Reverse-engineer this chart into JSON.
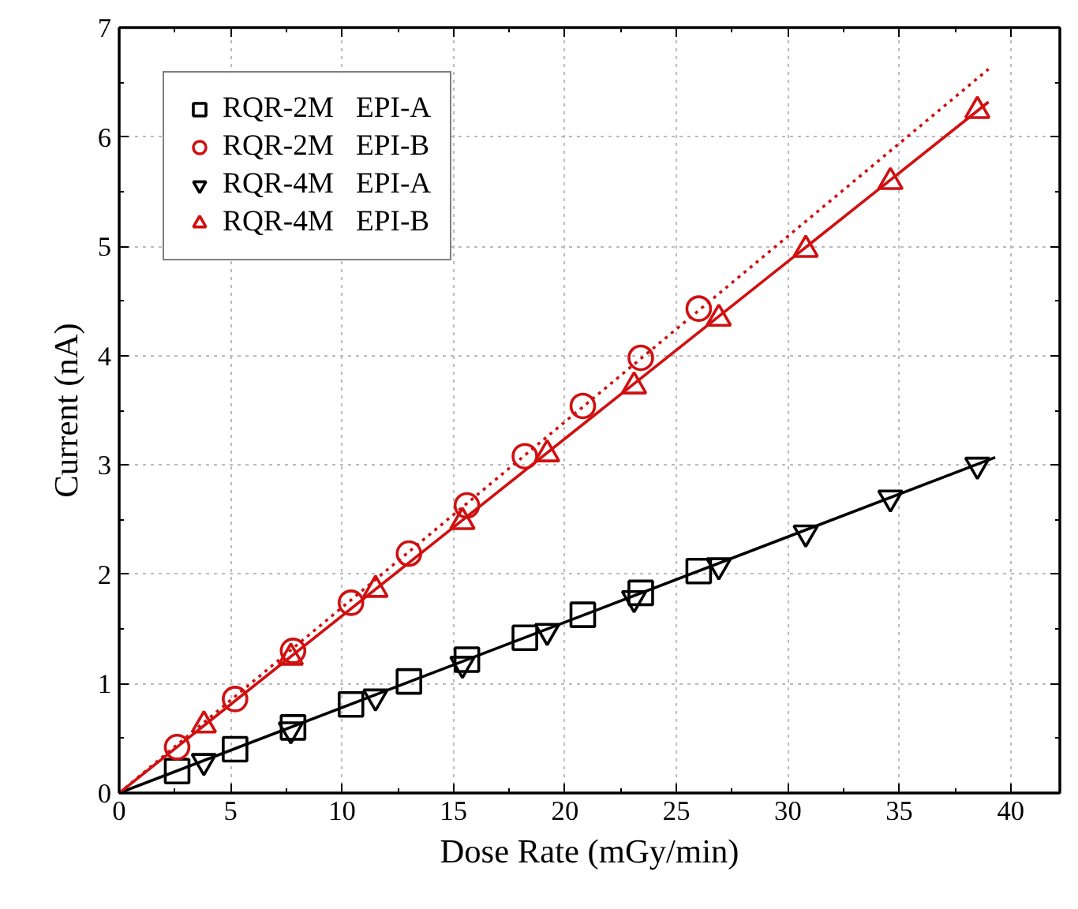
{
  "chart_data": {
    "type": "scatter",
    "xlabel": "Dose Rate (mGy/min)",
    "ylabel": "Current (nA)",
    "xlim": [
      0,
      42.2
    ],
    "ylim": [
      0,
      7
    ],
    "xticks": [
      0,
      5,
      10,
      15,
      20,
      25,
      30,
      35,
      40
    ],
    "yticks": [
      0,
      1,
      2,
      3,
      4,
      5,
      6,
      7
    ],
    "grid": true,
    "legend": "top left",
    "series": [
      {
        "name": "RQR-2M   EPI-A",
        "color": "#000000",
        "marker": "square",
        "x": [
          2.6,
          5.2,
          7.8,
          10.4,
          13.0,
          15.6,
          18.2,
          20.8,
          23.4,
          26.0
        ],
        "values": [
          0.2,
          0.4,
          0.6,
          0.81,
          1.02,
          1.22,
          1.42,
          1.63,
          1.83,
          2.03
        ]
      },
      {
        "name": "RQR-2M   EPI-B",
        "color": "#d01010",
        "marker": "circle",
        "x": [
          2.6,
          5.2,
          7.8,
          10.4,
          13.0,
          15.6,
          18.2,
          20.8,
          23.4,
          26.0
        ],
        "values": [
          0.42,
          0.86,
          1.3,
          1.74,
          2.19,
          2.63,
          3.08,
          3.54,
          3.98,
          4.43
        ]
      },
      {
        "name": "RQR-4M   EPI-A",
        "color": "#000000",
        "x": [
          3.8,
          7.7,
          11.5,
          15.4,
          19.2,
          23.1,
          26.9,
          30.8,
          34.6,
          38.5
        ],
        "values": [
          0.29,
          0.58,
          0.88,
          1.18,
          1.48,
          1.78,
          2.08,
          2.38,
          2.7,
          3.0
        ]
      },
      {
        "name": "RQR-4M   EPI-B",
        "color": "#d01010",
        "marker": "triangle",
        "x": [
          3.8,
          7.7,
          11.5,
          15.4,
          19.2,
          23.1,
          26.9,
          30.8,
          34.6,
          38.5
        ],
        "values": [
          0.62,
          1.24,
          1.86,
          2.48,
          3.1,
          3.72,
          4.34,
          4.97,
          5.59,
          6.24
        ]
      },
      {
        "type": "line",
        "color": "#000000",
        "line_style": "solid",
        "x": [
          0,
          39.3
        ],
        "values": [
          0,
          3.07
        ]
      },
      {
        "type": "line",
        "color": "#d01010",
        "line_style": "solid",
        "x": [
          0,
          39.0
        ],
        "values": [
          0,
          6.32
        ]
      },
      {
        "type": "line",
        "color": "#d01010",
        "line_style": "dotted",
        "x": [
          0,
          39
        ],
        "values": [
          0,
          6.62
        ]
      }
    ]
  }
}
